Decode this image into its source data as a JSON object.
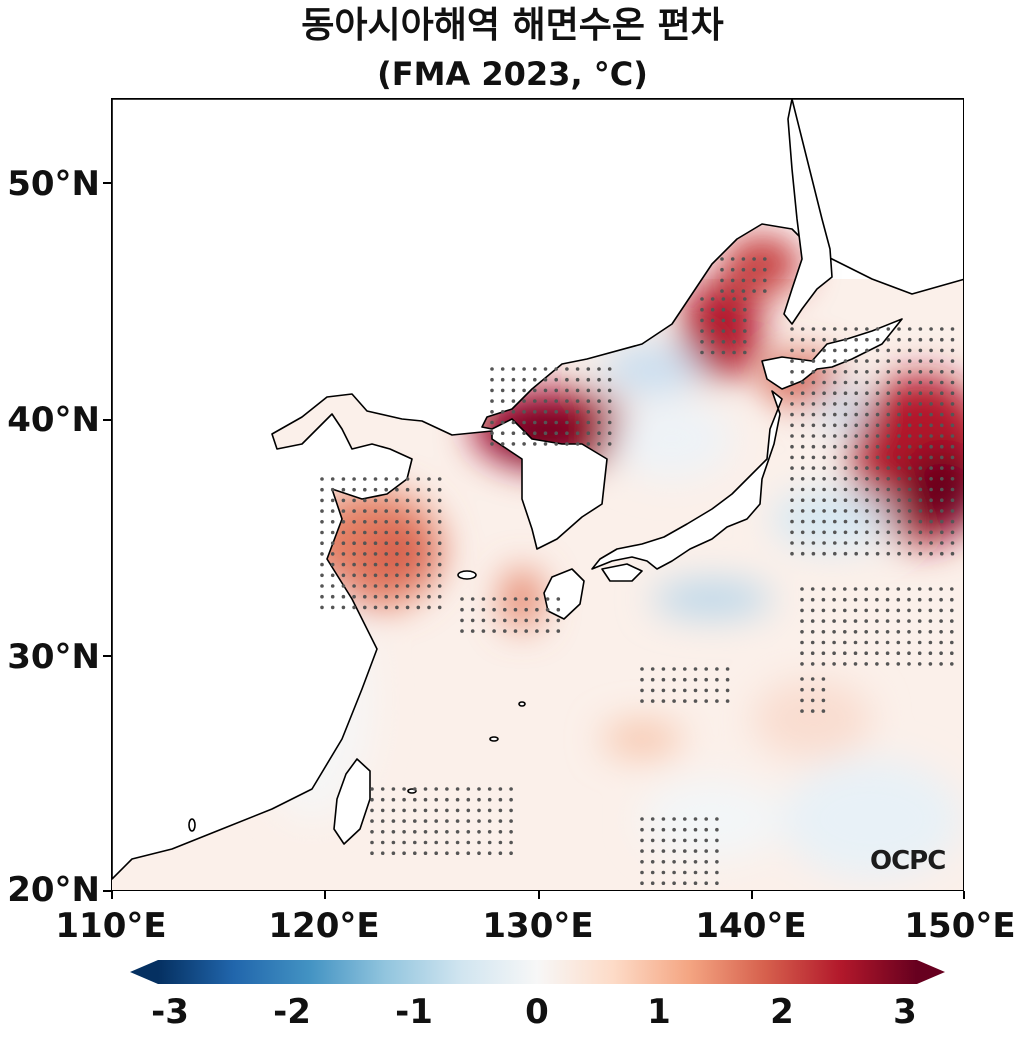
{
  "title": {
    "line1": "동아시아해역 해면수온 편차",
    "line2": "(FMA 2023, °C)"
  },
  "axes": {
    "y_ticks": [
      "50°N",
      "40°N",
      "30°N",
      "20°N"
    ],
    "x_ticks": [
      "110°E",
      "120°E",
      "130°E",
      "140°E",
      "150°E"
    ]
  },
  "colorbar": {
    "ticks": [
      "-3",
      "-2",
      "-1",
      "0",
      "1",
      "2",
      "3"
    ],
    "cmap": [
      "#053061",
      "#2166ac",
      "#4393c3",
      "#92c5de",
      "#d1e5f0",
      "#f7f7f7",
      "#fddbc7",
      "#f4a582",
      "#d6604d",
      "#b2182b",
      "#67001f"
    ]
  },
  "logo": "OCPC"
}
